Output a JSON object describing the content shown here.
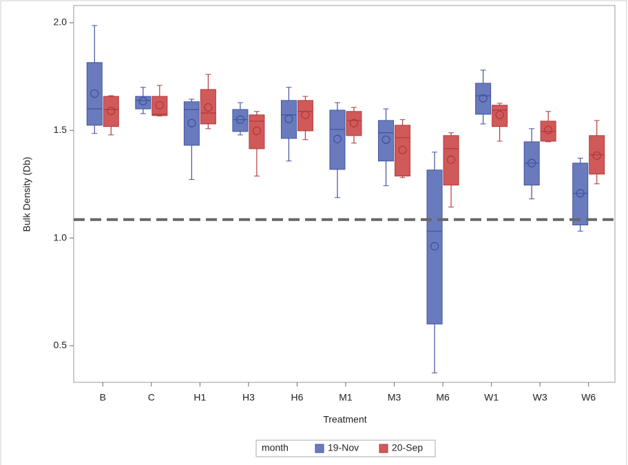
{
  "chart_data": {
    "type": "box",
    "x_label": "Treatment",
    "y_label": "Bulk Density (Db)",
    "categories": [
      "B",
      "C",
      "H1",
      "H3",
      "H6",
      "M1",
      "M3",
      "M6",
      "W1",
      "W3",
      "W6"
    ],
    "ylim": [
      0.33,
      2.08
    ],
    "yticks": [
      0.5,
      {
        "value": 1.0,
        "label": "1.0"
      },
      1.5,
      {
        "value": 2.0,
        "label": "2.0"
      }
    ],
    "reference_line": 1.086,
    "legend_title": "month",
    "series": [
      {
        "name": "19-Nov",
        "color": "#6a7bbd",
        "min": [
          1.486,
          1.578,
          1.272,
          1.479,
          1.358,
          1.188,
          1.243,
          0.374,
          1.53,
          1.182,
          1.032
        ],
        "q1": [
          1.524,
          1.6,
          1.431,
          1.495,
          1.463,
          1.319,
          1.358,
          0.601,
          1.575,
          1.246,
          1.061
        ],
        "median": [
          1.6,
          1.639,
          1.597,
          1.55,
          1.572,
          1.505,
          1.489,
          1.032,
          1.661,
          1.348,
          1.208
        ],
        "q3": [
          1.815,
          1.658,
          1.633,
          1.597,
          1.639,
          1.594,
          1.546,
          1.316,
          1.719,
          1.447,
          1.348
        ],
        "max": [
          1.987,
          1.7,
          1.645,
          1.629,
          1.7,
          1.629,
          1.6,
          1.399,
          1.78,
          1.508,
          1.371
        ],
        "mean": [
          1.671,
          1.636,
          1.534,
          1.55,
          1.553,
          1.46,
          1.457,
          0.962,
          1.649,
          1.348,
          1.208
        ]
      },
      {
        "name": "20-Sep",
        "color": "#d05a5a",
        "min": [
          1.479,
          1.567,
          1.508,
          1.288,
          1.457,
          1.441,
          1.281,
          1.144,
          1.45,
          1.447,
          1.252
        ],
        "q1": [
          1.518,
          1.569,
          1.53,
          1.415,
          1.498,
          1.476,
          1.288,
          1.246,
          1.518,
          1.45,
          1.297
        ],
        "median": [
          1.597,
          1.575,
          1.581,
          1.543,
          1.588,
          1.546,
          1.466,
          1.415,
          1.594,
          1.495,
          1.387
        ],
        "q3": [
          1.658,
          1.658,
          1.69,
          1.572,
          1.639,
          1.588,
          1.524,
          1.476,
          1.617,
          1.543,
          1.476
        ],
        "max": [
          1.661,
          1.709,
          1.76,
          1.588,
          1.658,
          1.607,
          1.55,
          1.489,
          1.626,
          1.588,
          1.546
        ],
        "mean": [
          1.591,
          1.617,
          1.607,
          1.498,
          1.572,
          1.534,
          1.409,
          1.364,
          1.572,
          1.502,
          1.383
        ]
      }
    ]
  }
}
